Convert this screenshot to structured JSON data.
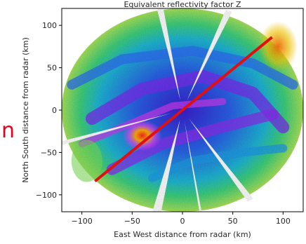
{
  "chart_data": {
    "type": "heatmap",
    "title": "Equivalent reflectivity factor Z",
    "xlabel": "East West distance from radar (km)",
    "ylabel": "North South distance from radar (km)",
    "xlim": [
      -120,
      120
    ],
    "ylim": [
      -120,
      120
    ],
    "xticks": [
      -100,
      -50,
      0,
      50,
      100
    ],
    "yticks": [
      -100,
      -50,
      0,
      50,
      100
    ],
    "radar_range_km": 120,
    "beam_blockage_sectors_deg": [
      {
        "from": 197,
        "to": 199
      },
      {
        "from": 256,
        "to": 260
      },
      {
        "from": 278,
        "to": 279
      },
      {
        "from": 301,
        "to": 304
      },
      {
        "from": 67,
        "to": 70
      },
      {
        "from": 99,
        "to": 102
      }
    ],
    "cross_section_line": {
      "x": [
        -87,
        89
      ],
      "y": [
        -84,
        86
      ],
      "color": "#e01010"
    },
    "side_label": "n",
    "colors": {
      "side_text": "#e8001c",
      "line": "#e01010",
      "outside": "#ffffff"
    }
  }
}
